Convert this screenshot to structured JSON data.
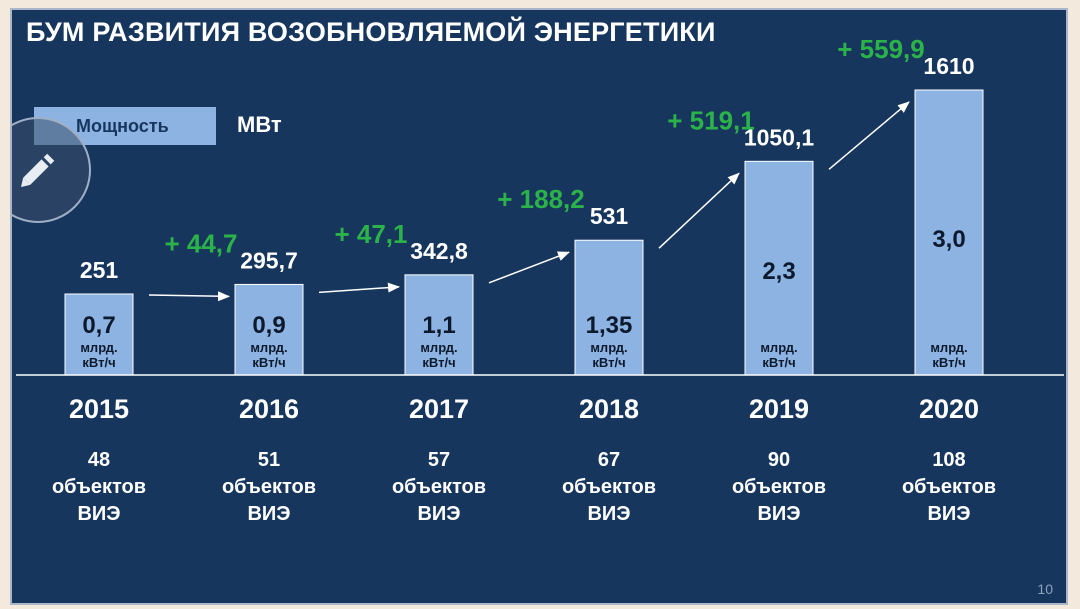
{
  "title": "БУМ РАЗВИТИЯ ВОЗОБНОВЛЯЕМОЙ ЭНЕРГЕТИКИ",
  "page_number": "10",
  "colors": {
    "background": "#17365d",
    "bar": "#8db3e2",
    "increase": "#2bb34a",
    "text": "#ffffff"
  },
  "edit_icon": "pencil-icon",
  "chart_data": {
    "type": "bar",
    "categories": [
      "2015",
      "2016",
      "2017",
      "2018",
      "2019",
      "2020"
    ],
    "series": [
      {
        "name": "Мощность",
        "values": [
          251,
          295.7,
          342.8,
          531,
          1050.1,
          1610
        ]
      }
    ],
    "value_labels": [
      "251",
      "295,7",
      "342,8",
      "531",
      "1050,1",
      "1610"
    ],
    "increases": [
      "+ 44,7",
      "+ 47,1",
      "+ 188,2",
      "+ 519,1",
      "+ 559,9"
    ],
    "generation": [
      "0,7",
      "0,9",
      "1,1",
      "1,35",
      "2,3",
      "3,0"
    ],
    "generation_unit": [
      "млрд.",
      "кВт/ч"
    ],
    "objects": [
      [
        "48",
        "объектов",
        "ВИЭ"
      ],
      [
        "51",
        "объектов",
        "ВИЭ"
      ],
      [
        "57",
        "объектов",
        "ВИЭ"
      ],
      [
        "67",
        "объектов",
        "ВИЭ"
      ],
      [
        "90",
        "объектов",
        "ВИЭ"
      ],
      [
        "108",
        "объектов",
        "ВИЭ"
      ]
    ],
    "legend": {
      "label": "Мощность",
      "unit": "МВт"
    },
    "legend_position": "top-left",
    "grid": false
  }
}
